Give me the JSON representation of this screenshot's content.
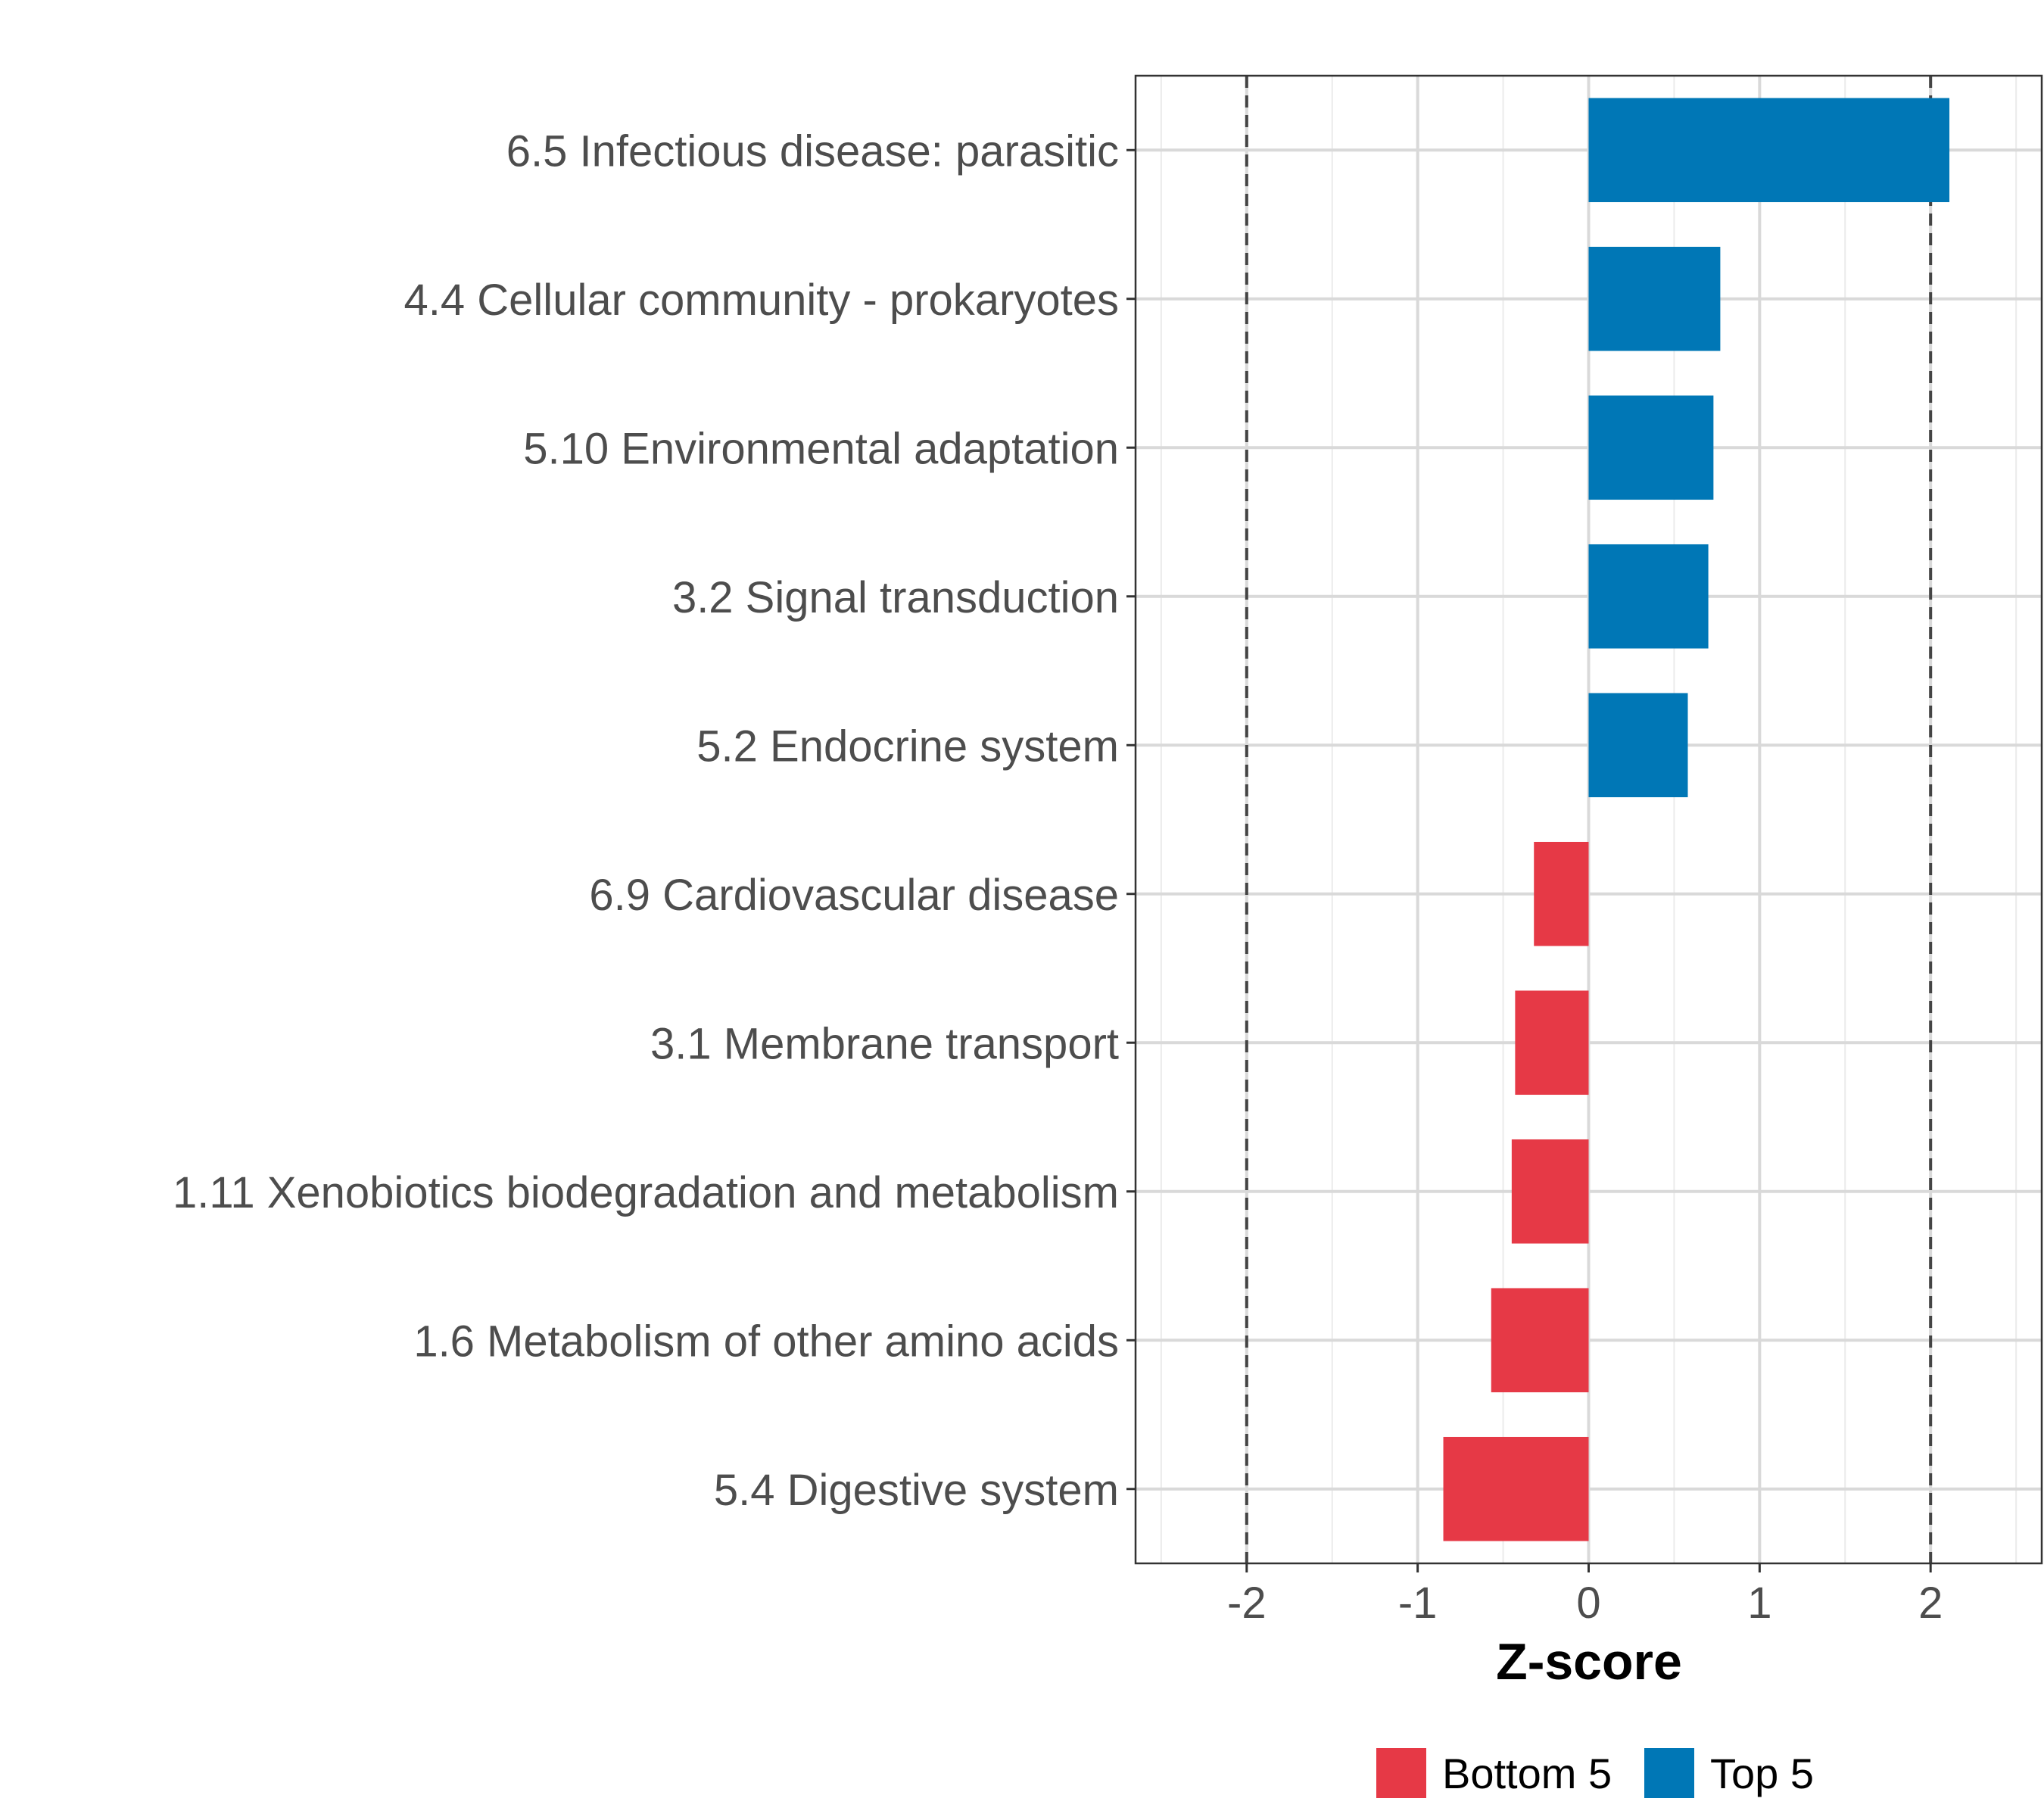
{
  "chart_data": {
    "type": "bar",
    "orientation": "horizontal",
    "xlabel": "Z-score",
    "xlim": [
      -2.65,
      2.65
    ],
    "xticks": [
      -2,
      -1,
      0,
      1,
      2
    ],
    "xtick_labels": [
      "-2",
      "-1",
      "0",
      "1",
      "2"
    ],
    "reference_lines": [
      -2,
      2
    ],
    "grid": true,
    "legend_position": "bottom",
    "categories": [
      "6.5 Infectious disease: parasitic",
      "4.4 Cellular community - prokaryotes",
      "5.10 Environmental adaptation",
      "3.2 Signal transduction",
      "5.2 Endocrine system",
      "6.9 Cardiovascular disease",
      "3.1 Membrane transport",
      "1.11 Xenobiotics biodegradation and metabolism",
      "1.6 Metabolism of other amino acids",
      "5.4 Digestive system"
    ],
    "values": [
      2.11,
      0.77,
      0.73,
      0.7,
      0.58,
      -0.32,
      -0.43,
      -0.45,
      -0.57,
      -0.85
    ],
    "groups": [
      "Top 5",
      "Top 5",
      "Top 5",
      "Top 5",
      "Top 5",
      "Bottom 5",
      "Bottom 5",
      "Bottom 5",
      "Bottom 5",
      "Bottom 5"
    ],
    "legend": [
      {
        "name": "Bottom 5",
        "color": "#E63946"
      },
      {
        "name": "Top 5",
        "color": "#0077B6"
      }
    ]
  }
}
